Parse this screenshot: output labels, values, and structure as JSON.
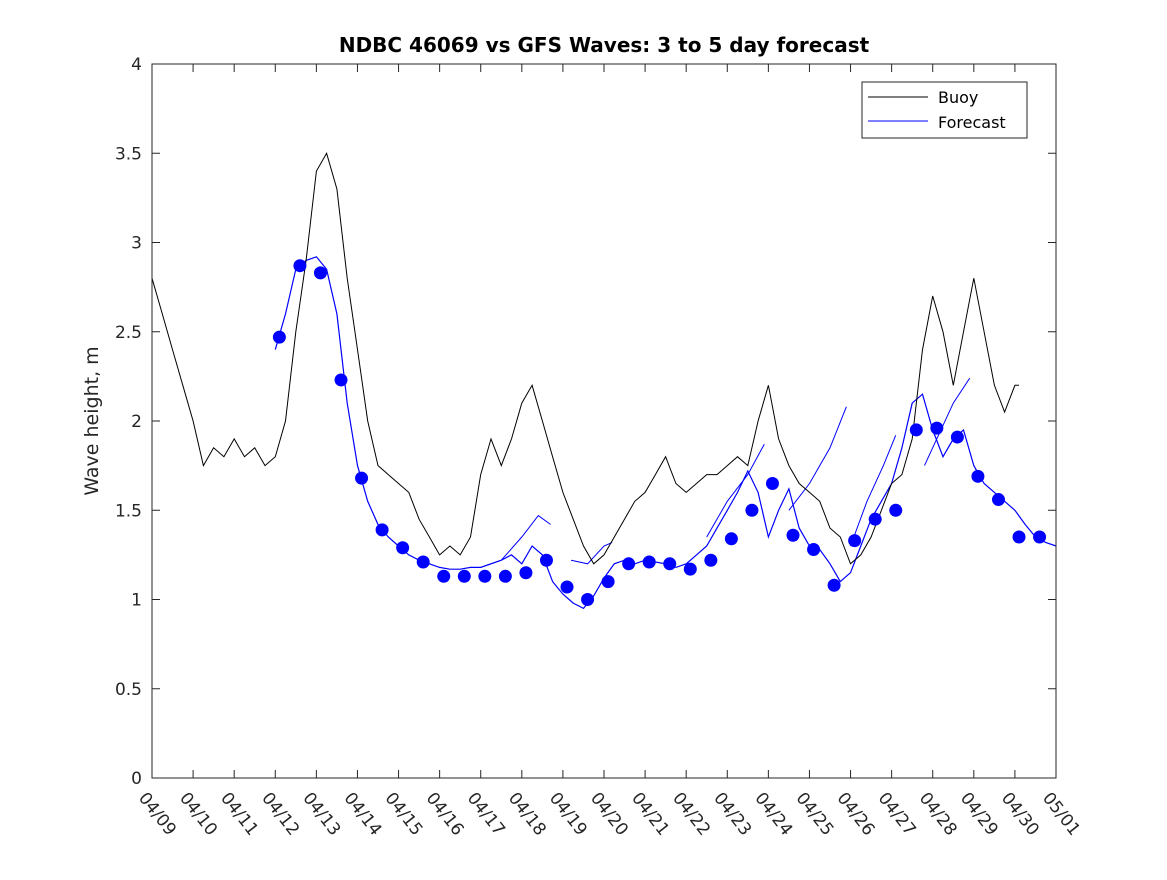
{
  "chart_data": {
    "type": "line",
    "title": "NDBC 46069 vs GFS Waves: 3 to 5 day forecast",
    "xlabel": "",
    "ylabel": "Wave height, m",
    "xlim": [
      0,
      22
    ],
    "ylim": [
      0,
      4
    ],
    "yticks": [
      "0",
      "0.5",
      "1",
      "1.5",
      "2",
      "2.5",
      "3",
      "3.5",
      "4"
    ],
    "xticks": [
      "04/09",
      "04/10",
      "04/11",
      "04/12",
      "04/13",
      "04/14",
      "04/15",
      "04/16",
      "04/17",
      "04/18",
      "04/19",
      "04/20",
      "04/21",
      "04/22",
      "04/23",
      "04/24",
      "04/25",
      "04/26",
      "04/27",
      "04/28",
      "04/29",
      "04/30",
      "05/01"
    ],
    "grid": false,
    "legend_position": "top-right",
    "colors": {
      "buoy": "#000000",
      "forecast": "#0000ff",
      "markers": "#0000ff"
    },
    "series": [
      {
        "name": "Buoy",
        "x": [
          0,
          0.25,
          0.5,
          0.75,
          1,
          1.25,
          1.5,
          1.75,
          2,
          2.25,
          2.5,
          2.75,
          3,
          3.25,
          3.5,
          3.75,
          4,
          4.25,
          4.5,
          4.75,
          5,
          5.25,
          5.5,
          5.75,
          6,
          6.25,
          6.5,
          6.75,
          7,
          7.25,
          7.5,
          7.75,
          8,
          8.25,
          8.5,
          8.75,
          9,
          9.25,
          9.5,
          9.75,
          10,
          10.25,
          10.5,
          10.75,
          11,
          11.25,
          11.5,
          11.75,
          12,
          12.25,
          12.5,
          12.75,
          13,
          13.25,
          13.5,
          13.75,
          14,
          14.25,
          14.5,
          14.75,
          15,
          15.25,
          15.5,
          15.75,
          16,
          16.25,
          16.5,
          16.75,
          17,
          17.25,
          17.5,
          17.75,
          18,
          18.25,
          18.5,
          18.75,
          19,
          19.25,
          19.5,
          19.75,
          20,
          20.25,
          20.5,
          20.75,
          21,
          21.1
        ],
        "y": [
          2.8,
          2.6,
          2.4,
          2.2,
          2.0,
          1.75,
          1.85,
          1.8,
          1.9,
          1.8,
          1.85,
          1.75,
          1.8,
          2.0,
          2.5,
          2.9,
          3.4,
          3.5,
          3.3,
          2.8,
          2.4,
          2.0,
          1.75,
          1.7,
          1.65,
          1.6,
          1.45,
          1.35,
          1.25,
          1.3,
          1.25,
          1.35,
          1.7,
          1.9,
          1.75,
          1.9,
          2.1,
          2.2,
          2.0,
          1.8,
          1.6,
          1.45,
          1.3,
          1.2,
          1.25,
          1.35,
          1.45,
          1.55,
          1.6,
          1.7,
          1.8,
          1.65,
          1.6,
          1.65,
          1.7,
          1.7,
          1.75,
          1.8,
          1.75,
          2.0,
          2.2,
          1.9,
          1.75,
          1.65,
          1.6,
          1.55,
          1.4,
          1.35,
          1.2,
          1.25,
          1.35,
          1.5,
          1.65,
          1.7,
          1.9,
          2.4,
          2.7,
          2.5,
          2.2,
          2.5,
          2.8,
          2.5,
          2.2,
          2.05,
          2.2,
          2.2
        ]
      },
      {
        "name": "Forecast",
        "x": [
          3.0,
          3.25,
          3.5,
          3.75,
          4.0,
          4.25,
          4.5,
          4.75,
          5.0,
          5.25,
          5.5,
          5.75,
          6.0,
          6.25,
          6.5,
          6.75,
          7.0,
          7.25,
          7.5,
          7.75,
          8.0,
          8.25,
          8.5,
          8.75,
          9.0,
          9.25,
          9.5,
          9.75,
          10.0,
          10.25,
          10.5,
          10.75,
          11.0,
          11.25,
          11.5,
          11.75,
          12.0,
          12.25,
          12.5,
          12.75,
          13.0,
          13.25,
          13.5,
          13.75,
          14.0,
          14.25,
          14.5,
          14.75,
          15.0,
          15.25,
          15.5,
          15.75,
          16.0,
          16.25,
          16.5,
          16.75,
          17.0,
          17.25,
          17.5,
          17.75,
          18.0,
          18.25,
          18.5,
          18.75,
          19.0,
          19.25,
          19.5,
          19.75,
          20.0,
          20.25,
          20.5,
          20.75,
          21.0,
          21.25,
          21.5,
          21.75,
          22.0
        ],
        "y": [
          2.4,
          2.6,
          2.85,
          2.9,
          2.92,
          2.85,
          2.6,
          2.1,
          1.75,
          1.55,
          1.42,
          1.35,
          1.3,
          1.25,
          1.22,
          1.2,
          1.18,
          1.17,
          1.17,
          1.18,
          1.18,
          1.2,
          1.22,
          1.25,
          1.2,
          1.3,
          1.25,
          1.1,
          1.03,
          0.98,
          0.95,
          1.02,
          1.12,
          1.2,
          1.22,
          1.2,
          1.22,
          1.21,
          1.2,
          1.18,
          1.2,
          1.25,
          1.3,
          1.4,
          1.5,
          1.6,
          1.72,
          1.6,
          1.35,
          1.5,
          1.62,
          1.4,
          1.3,
          1.28,
          1.2,
          1.1,
          1.15,
          1.3,
          1.45,
          1.55,
          1.65,
          1.85,
          2.1,
          2.15,
          1.95,
          1.8,
          1.9,
          1.95,
          1.75,
          1.65,
          1.6,
          1.55,
          1.5,
          1.42,
          1.35,
          1.32,
          1.3
        ]
      },
      {
        "name": "",
        "markers": true,
        "x": [
          3.1,
          3.6,
          4.1,
          4.6,
          5.1,
          5.6,
          6.1,
          6.6,
          7.1,
          7.6,
          8.1,
          8.6,
          9.1,
          9.6,
          10.1,
          10.6,
          11.1,
          11.6,
          12.1,
          12.6,
          13.1,
          13.6,
          14.1,
          14.6,
          15.1,
          15.6,
          16.1,
          16.6,
          17.1,
          17.6,
          18.1,
          18.6,
          19.1,
          19.6,
          20.1,
          20.6,
          21.1,
          21.6
        ],
        "y": [
          2.47,
          2.87,
          2.83,
          2.23,
          1.68,
          1.39,
          1.29,
          1.21,
          1.13,
          1.13,
          1.13,
          1.13,
          1.15,
          1.22,
          1.07,
          1.0,
          1.1,
          1.2,
          1.21,
          1.2,
          1.17,
          1.22,
          1.34,
          1.5,
          1.65,
          1.36,
          1.28,
          1.08,
          1.33,
          1.45,
          1.5,
          1.95,
          1.96,
          1.91,
          1.69,
          1.56,
          1.35,
          1.35
        ]
      }
    ],
    "forecast_segments": [
      {
        "x": [
          8.0,
          8.5,
          9.0,
          9.4,
          9.7
        ],
        "y": [
          1.18,
          1.22,
          1.35,
          1.47,
          1.42
        ]
      },
      {
        "x": [
          10.2,
          10.6,
          11.0,
          11.2
        ],
        "y": [
          1.22,
          1.2,
          1.3,
          1.32
        ]
      },
      {
        "x": [
          13.5,
          14.0,
          14.5,
          14.9
        ],
        "y": [
          1.35,
          1.55,
          1.7,
          1.87
        ]
      },
      {
        "x": [
          15.5,
          16.0,
          16.5,
          16.9
        ],
        "y": [
          1.5,
          1.65,
          1.85,
          2.08
        ]
      },
      {
        "x": [
          17.0,
          17.4,
          17.8,
          18.1
        ],
        "y": [
          1.3,
          1.55,
          1.75,
          1.92
        ]
      },
      {
        "x": [
          18.8,
          19.2,
          19.5,
          19.9
        ],
        "y": [
          1.75,
          1.95,
          2.1,
          2.24
        ]
      }
    ]
  }
}
